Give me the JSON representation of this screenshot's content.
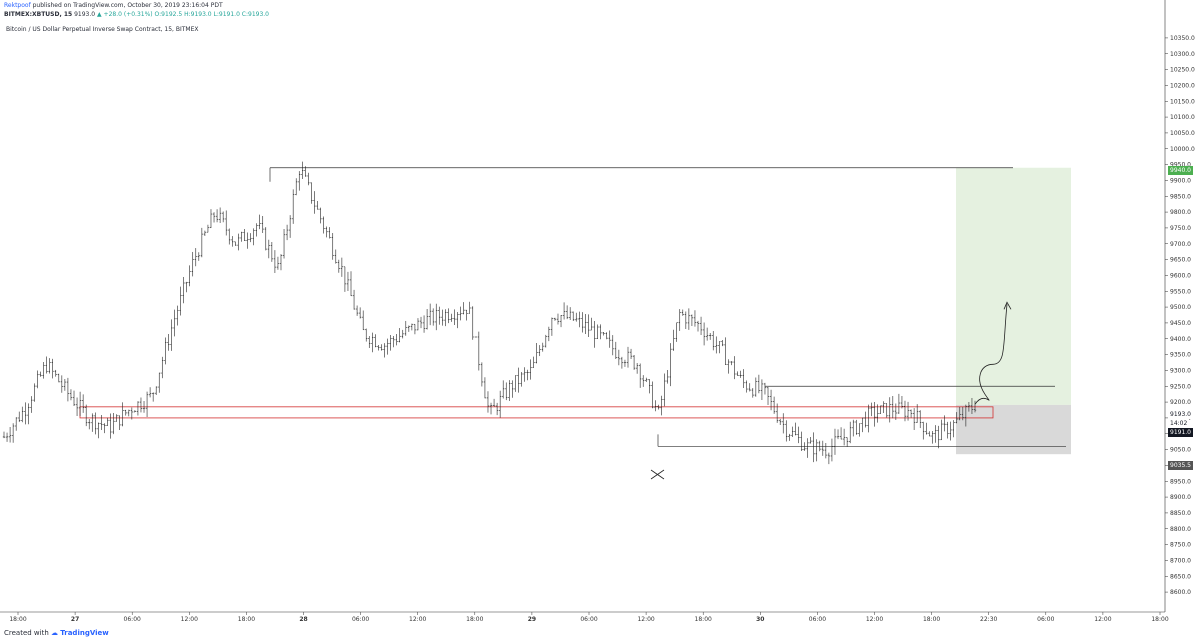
{
  "header": {
    "author": "Rektpoof",
    "published": "published on TradingView.com, October 30, 2019 23:16:04 PDT",
    "symbol": "BITMEX:XBTUSD, 15",
    "last": "9193.0",
    "change": "▲ +28.0 (+0.31%)",
    "ohlc": "O:9192.5 H:9193.0 L:9191.0 C:9193.0"
  },
  "chart_title": "Bitcoin / US Dollar Perpetual Inverse Swap Contract, 15, BITMEX",
  "footer": {
    "created_with": "Created with",
    "logo": "TradingView"
  },
  "price_axis": {
    "ticks": [
      "10350.0",
      "10300.0",
      "10250.0",
      "10200.0",
      "10150.0",
      "10100.0",
      "10050.0",
      "10000.0",
      "9950.0",
      "9900.0",
      "9850.0",
      "9800.0",
      "9750.0",
      "9700.0",
      "9650.0",
      "9600.0",
      "9550.0",
      "9500.0",
      "9450.0",
      "9400.0",
      "9350.0",
      "9300.0",
      "9250.0",
      "9200.0",
      "9150.0",
      "9100.0",
      "9050.0",
      "9000.0",
      "8950.0",
      "8900.0",
      "8850.0",
      "8800.0",
      "8750.0",
      "8700.0",
      "8650.0",
      "8600.0"
    ]
  },
  "price_tags": [
    {
      "label": "9940.0",
      "color": "#4caf50",
      "text_color": "#ffffff"
    },
    {
      "label": "9193.0",
      "color": "#ffffff",
      "text_color": "#131722"
    },
    {
      "label": "14:02",
      "color": "#ffffff",
      "text_color": "#131722"
    },
    {
      "label": "9191.0",
      "color": "#131722",
      "text_color": "#ffffff"
    },
    {
      "label": "9035.5",
      "color": "#555555",
      "text_color": "#ffffff"
    }
  ],
  "time_axis": {
    "ticks": [
      "18:00",
      "27",
      "06:00",
      "12:00",
      "18:00",
      "28",
      "06:00",
      "12:00",
      "18:00",
      "29",
      "06:00",
      "12:00",
      "18:00",
      "30",
      "06:00",
      "12:00",
      "18:00",
      "22:30",
      "06:00",
      "12:00",
      "18:00"
    ]
  },
  "colors": {
    "up": "#26a69a",
    "accent": "#2962ff",
    "zone_red": "#d32f2f",
    "target_zone": "#e5f1e0",
    "stop_zone": "#d9d9d9",
    "candle": "#222222"
  },
  "chart_data": {
    "type": "candlestick",
    "symbol": "BITMEX:XBTUSD",
    "interval": "15",
    "ylim": [
      8575,
      10375
    ],
    "price_axis_ticks": [
      10350,
      10300,
      10250,
      10200,
      10150,
      10100,
      10050,
      10000,
      9950,
      9900,
      9850,
      9800,
      9750,
      9700,
      9650,
      9600,
      9550,
      9500,
      9450,
      9400,
      9350,
      9300,
      9250,
      9200,
      9150,
      9100,
      9050,
      9000,
      8950,
      8900,
      8850,
      8800,
      8750,
      8700,
      8650,
      8600
    ],
    "time_axis_labels": [
      "18:00",
      "27",
      "06:00",
      "12:00",
      "18:00",
      "28",
      "06:00",
      "12:00",
      "18:00",
      "29",
      "06:00",
      "12:00",
      "18:00",
      "30",
      "06:00",
      "12:00",
      "18:00",
      "22:30",
      "06:00",
      "12:00",
      "18:00"
    ],
    "approx_close_path": [
      {
        "t": 0,
        "p": 9090
      },
      {
        "t": 1,
        "p": 9180
      },
      {
        "t": 2,
        "p": 9320
      },
      {
        "t": 3,
        "p": 9230
      },
      {
        "t": 4,
        "p": 9150
      },
      {
        "t": 5,
        "p": 9120
      },
      {
        "t": 6,
        "p": 9180
      },
      {
        "t": 7,
        "p": 9220
      },
      {
        "t": 8,
        "p": 9450
      },
      {
        "t": 9,
        "p": 9650
      },
      {
        "t": 10,
        "p": 9800
      },
      {
        "t": 11,
        "p": 9700
      },
      {
        "t": 12,
        "p": 9760
      },
      {
        "t": 13,
        "p": 9620
      },
      {
        "t": 14,
        "p": 9940
      },
      {
        "t": 15,
        "p": 9780
      },
      {
        "t": 16,
        "p": 9620
      },
      {
        "t": 17,
        "p": 9420
      },
      {
        "t": 18,
        "p": 9380
      },
      {
        "t": 19,
        "p": 9420
      },
      {
        "t": 20,
        "p": 9460
      },
      {
        "t": 21,
        "p": 9480
      },
      {
        "t": 22,
        "p": 9500
      },
      {
        "t": 23,
        "p": 9160
      },
      {
        "t": 24,
        "p": 9250
      },
      {
        "t": 25,
        "p": 9300
      },
      {
        "t": 26,
        "p": 9480
      },
      {
        "t": 27,
        "p": 9460
      },
      {
        "t": 28,
        "p": 9420
      },
      {
        "t": 29,
        "p": 9360
      },
      {
        "t": 30,
        "p": 9320
      },
      {
        "t": 31,
        "p": 9160
      },
      {
        "t": 32,
        "p": 9480
      },
      {
        "t": 33,
        "p": 9440
      },
      {
        "t": 34,
        "p": 9360
      },
      {
        "t": 35,
        "p": 9260
      },
      {
        "t": 36,
        "p": 9230
      },
      {
        "t": 37,
        "p": 9120
      },
      {
        "t": 38,
        "p": 9060
      },
      {
        "t": 39,
        "p": 9050
      },
      {
        "t": 40,
        "p": 9100
      },
      {
        "t": 41,
        "p": 9160
      },
      {
        "t": 42,
        "p": 9180
      },
      {
        "t": 43,
        "p": 9170
      },
      {
        "t": 44,
        "p": 9090
      },
      {
        "t": 45,
        "p": 9130
      },
      {
        "t": 46,
        "p": 9193
      }
    ],
    "annotations": {
      "resistance_level": 9940,
      "target_price": 9940,
      "entry_price": 9191,
      "stop_price": 9035.5,
      "support_zone": [
        9150,
        9185
      ],
      "box_top": 9250,
      "box_bottom": 9060
    }
  }
}
